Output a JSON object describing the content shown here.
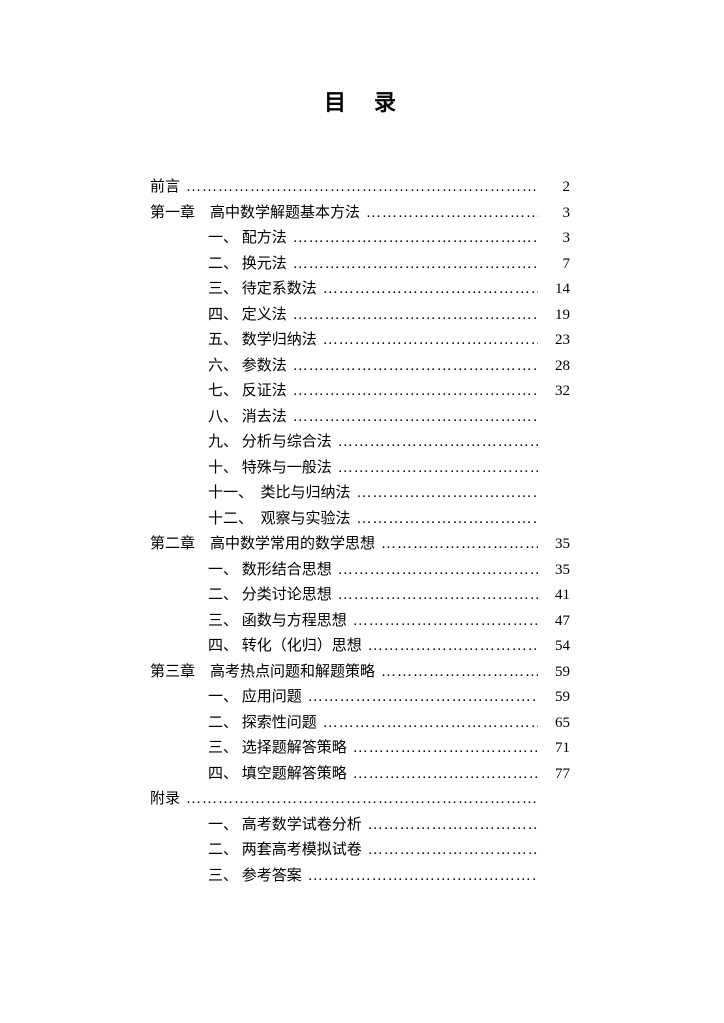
{
  "title": "目录",
  "entries": [
    {
      "indent": 0,
      "label": "前言",
      "page": "2"
    },
    {
      "indent": 0,
      "label": "第一章　高中数学解题基本方法",
      "page": "3"
    },
    {
      "indent": 1,
      "label": "一、 配方法",
      "page": "3"
    },
    {
      "indent": 1,
      "label": "二、 换元法",
      "page": "7"
    },
    {
      "indent": 1,
      "label": "三、 待定系数法",
      "page": "14"
    },
    {
      "indent": 1,
      "label": "四、 定义法",
      "page": "19"
    },
    {
      "indent": 1,
      "label": "五、 数学归纳法",
      "page": "23"
    },
    {
      "indent": 1,
      "label": "六、 参数法",
      "page": "28"
    },
    {
      "indent": 1,
      "label": "七、 反证法",
      "page": "32"
    },
    {
      "indent": 1,
      "label": "八、 消去法",
      "page": ""
    },
    {
      "indent": 1,
      "label": "九、 分析与综合法",
      "page": ""
    },
    {
      "indent": 1,
      "label": "十、 特殊与一般法",
      "page": ""
    },
    {
      "indent": 1,
      "label": "十一、　类比与归纳法",
      "page": ""
    },
    {
      "indent": 1,
      "label": "十二、　观察与实验法",
      "page": ""
    },
    {
      "indent": 0,
      "label": "第二章　高中数学常用的数学思想",
      "page": "35"
    },
    {
      "indent": 1,
      "label": "一、 数形结合思想",
      "page": "35"
    },
    {
      "indent": 1,
      "label": "二、 分类讨论思想",
      "page": "41"
    },
    {
      "indent": 1,
      "label": "三、 函数与方程思想",
      "page": "47"
    },
    {
      "indent": 1,
      "label": "四、 转化（化归）思想",
      "page": "54"
    },
    {
      "indent": 0,
      "label": "第三章　高考热点问题和解题策略",
      "page": "59"
    },
    {
      "indent": 1,
      "label": "一、 应用问题",
      "page": "59"
    },
    {
      "indent": 1,
      "label": "二、 探索性问题",
      "page": "65"
    },
    {
      "indent": 1,
      "label": "三、 选择题解答策略",
      "page": "71"
    },
    {
      "indent": 1,
      "label": "四、 填空题解答策略",
      "page": "77"
    },
    {
      "indent": 0,
      "label": "附录",
      "page": ""
    },
    {
      "indent": 1,
      "label": "一、 高考数学试卷分析",
      "page": ""
    },
    {
      "indent": 1,
      "label": "二、 两套高考模拟试卷",
      "page": ""
    },
    {
      "indent": 1,
      "label": "三、 参考答案",
      "page": ""
    }
  ]
}
